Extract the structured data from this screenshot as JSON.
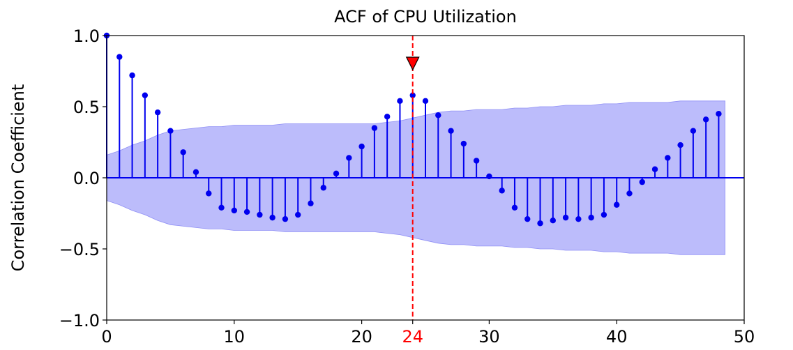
{
  "chart_data": {
    "type": "stem",
    "title": "ACF of CPU Utilization",
    "xlabel": "",
    "ylabel": "Correlation Coefficient",
    "xlim": [
      0,
      50
    ],
    "ylim": [
      -1.0,
      1.0
    ],
    "x_ticks": [
      0,
      10,
      20,
      30,
      40,
      50
    ],
    "x_tick_labels": [
      "0",
      "10",
      "20",
      "30",
      "40",
      "50"
    ],
    "y_ticks": [
      1.0,
      0.5,
      0.0,
      -0.5,
      -1.0
    ],
    "y_tick_labels": [
      "1.0",
      "0.5",
      "0.0",
      "−0.5",
      "−1.0"
    ],
    "grid": false,
    "series": [
      {
        "name": "ACF",
        "color": "#0000ee",
        "lags": [
          0,
          1,
          2,
          3,
          4,
          5,
          6,
          7,
          8,
          9,
          10,
          11,
          12,
          13,
          14,
          15,
          16,
          17,
          18,
          19,
          20,
          21,
          22,
          23,
          24,
          25,
          26,
          27,
          28,
          29,
          30,
          31,
          32,
          33,
          34,
          35,
          36,
          37,
          38,
          39,
          40,
          41,
          42,
          43,
          44,
          45,
          46,
          47,
          48
        ],
        "values": [
          1.0,
          0.85,
          0.72,
          0.58,
          0.46,
          0.33,
          0.18,
          0.04,
          -0.11,
          -0.21,
          -0.23,
          -0.24,
          -0.26,
          -0.28,
          -0.29,
          -0.26,
          -0.18,
          -0.07,
          0.03,
          0.14,
          0.22,
          0.35,
          0.43,
          0.54,
          0.58,
          0.54,
          0.44,
          0.33,
          0.24,
          0.12,
          0.01,
          -0.09,
          -0.21,
          -0.29,
          -0.32,
          -0.3,
          -0.28,
          -0.29,
          -0.28,
          -0.26,
          -0.19,
          -0.11,
          -0.03,
          0.06,
          0.14,
          0.23,
          0.33,
          0.41,
          0.45
        ]
      }
    ],
    "confidence_band": {
      "color": "#b9b9fb",
      "lags": [
        0,
        1,
        2,
        3,
        4,
        5,
        6,
        7,
        8,
        9,
        10,
        11,
        12,
        13,
        14,
        15,
        16,
        17,
        18,
        19,
        20,
        21,
        22,
        23,
        24,
        25,
        26,
        27,
        28,
        29,
        30,
        31,
        32,
        33,
        34,
        35,
        36,
        37,
        38,
        39,
        40,
        41,
        42,
        43,
        44,
        45,
        46,
        47,
        48,
        48.5
      ],
      "upper": [
        0.16,
        0.19,
        0.23,
        0.26,
        0.3,
        0.33,
        0.34,
        0.35,
        0.36,
        0.36,
        0.37,
        0.37,
        0.37,
        0.37,
        0.38,
        0.38,
        0.38,
        0.38,
        0.38,
        0.38,
        0.38,
        0.38,
        0.39,
        0.4,
        0.42,
        0.44,
        0.46,
        0.47,
        0.47,
        0.48,
        0.48,
        0.48,
        0.49,
        0.49,
        0.5,
        0.5,
        0.51,
        0.51,
        0.51,
        0.52,
        0.52,
        0.53,
        0.53,
        0.53,
        0.53,
        0.54,
        0.54,
        0.54,
        0.54,
        0.54
      ]
    },
    "marker": {
      "lag": 24,
      "label": "24",
      "color": "#ff0000",
      "style": "dashed-vertical-line-with-triangle"
    }
  }
}
